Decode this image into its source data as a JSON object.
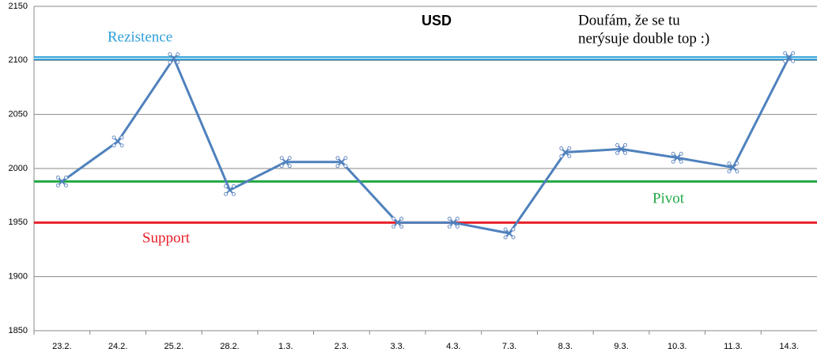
{
  "chart_data": {
    "type": "line",
    "title": "USD",
    "annotation": [
      "Doufám, že se tu",
      "nerýsuje double top :)"
    ],
    "categories": [
      "23.2.",
      "24.2.",
      "25.2.",
      "28.2.",
      "1.3.",
      "2.3.",
      "3.3.",
      "4.3.",
      "7.3.",
      "8.3.",
      "9.3.",
      "10.3.",
      "11.3.",
      "14.3."
    ],
    "series": [
      {
        "color": "#4f81bd",
        "values": [
          1988,
          2025,
          2102,
          1980,
          2006,
          2006,
          1950,
          1950,
          1940,
          2015,
          2018,
          2010,
          2001,
          2103
        ]
      }
    ],
    "reference_lines": [
      {
        "name": "Rezistence",
        "value": 2102,
        "color": "#2e9fd8"
      },
      {
        "name": "Pivot",
        "value": 1988,
        "color": "#22a844"
      },
      {
        "name": "Support",
        "value": 1950,
        "color": "#e8202a"
      }
    ],
    "ylim": [
      1850,
      2150
    ],
    "yticks": [
      1850,
      1900,
      1950,
      2000,
      2050,
      2100,
      2150
    ],
    "grid": true
  }
}
